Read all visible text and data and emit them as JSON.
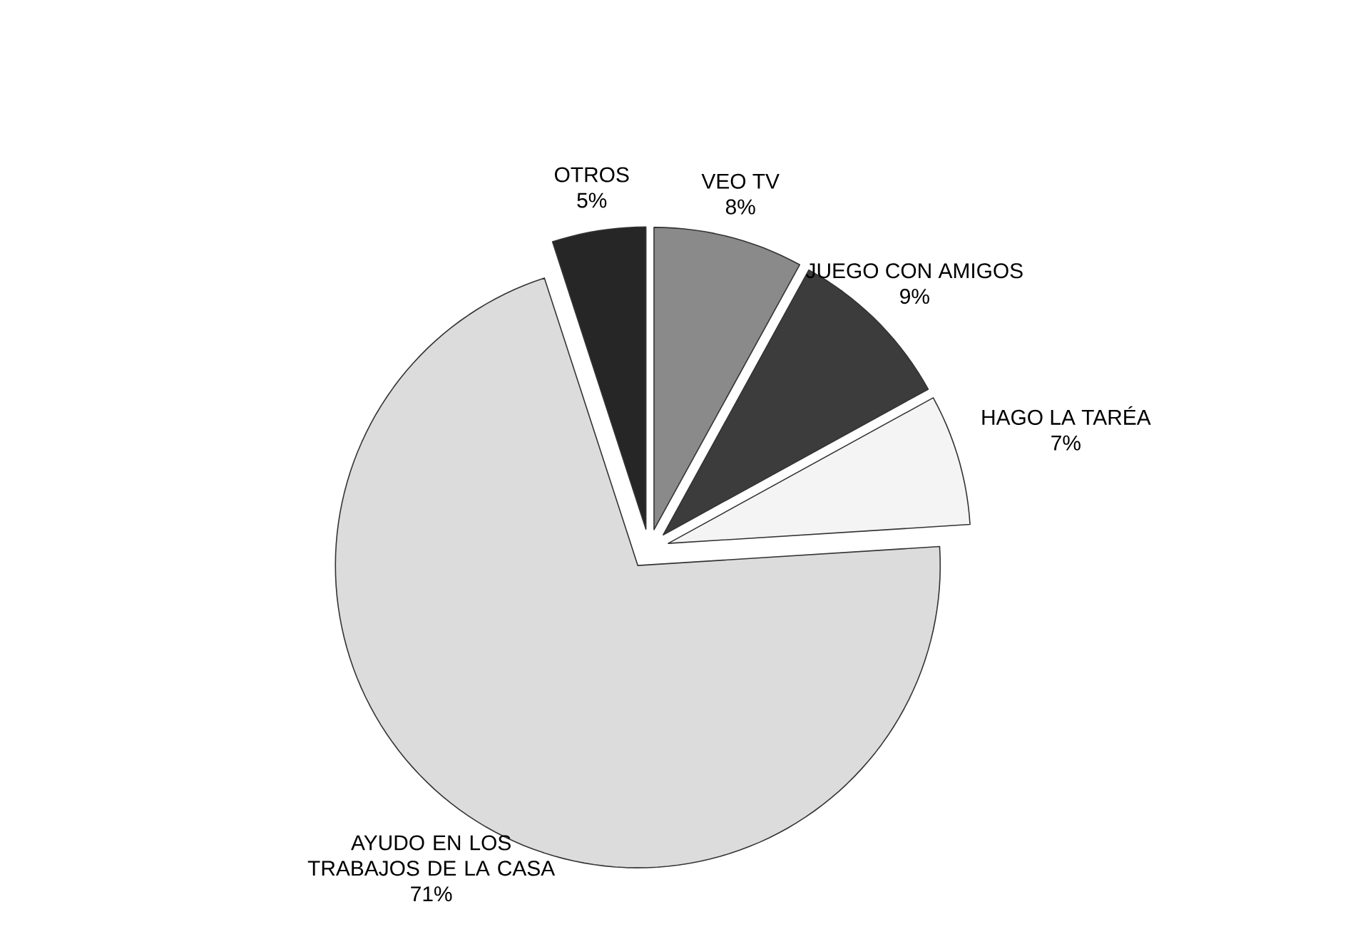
{
  "chart_data": {
    "type": "pie",
    "categories": [
      "VEO TV",
      "JUEGO CON AMIGOS",
      "HAGO LA TARÉA",
      "AYUDO EN LOS TRABAJOS DE LA CASA",
      "OTROS"
    ],
    "values": [
      8,
      9,
      7,
      71,
      5
    ],
    "value_labels": [
      "8%",
      "9%",
      "7%",
      "71%",
      "5%"
    ],
    "colors": [
      "#8a8a8a",
      "#3c3c3c",
      "#f4f4f4",
      "#dcdcdc",
      "#262626"
    ]
  }
}
